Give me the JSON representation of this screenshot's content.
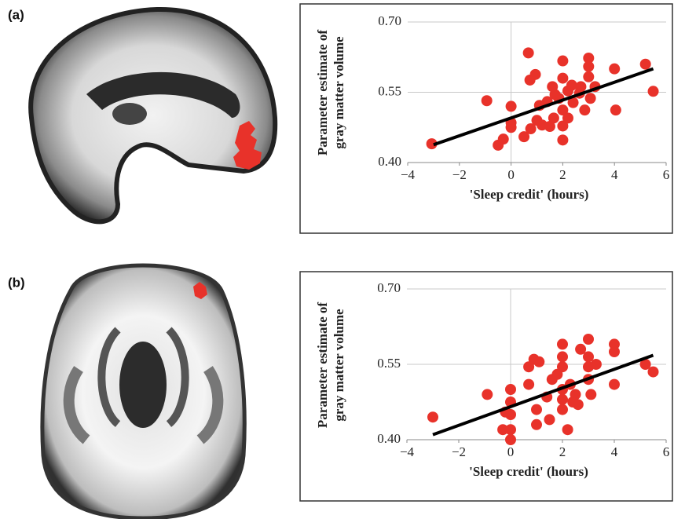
{
  "chart_data": [
    {
      "type": "scatter",
      "panel": "(a)",
      "xlabel": "'Sleep credit' (hours)",
      "ylabel": [
        "Parameter estimate of",
        "gray matter volume"
      ],
      "color": "#e8322a",
      "x": [
        -3.07,
        -0.94,
        0,
        0,
        0,
        -0.5,
        -0.3,
        0.67,
        0.73,
        0.94,
        0.5,
        0.76,
        1.0,
        1.2,
        1.5,
        1.1,
        1.4,
        1.6,
        1.7,
        1.85,
        2.0,
        2.0,
        2.0,
        2.0,
        2.0,
        2.2,
        2.35,
        2.4,
        2.65,
        2.7,
        3.0,
        3.0,
        3.0,
        3.07,
        3.25,
        2.85,
        4.0,
        4.05,
        5.2,
        5.5,
        1.65,
        2.2
      ],
      "values": [
        0.44,
        0.532,
        0.52,
        0.485,
        0.475,
        0.437,
        0.45,
        0.634,
        0.576,
        0.588,
        0.455,
        0.472,
        0.49,
        0.48,
        0.477,
        0.522,
        0.53,
        0.562,
        0.545,
        0.537,
        0.617,
        0.58,
        0.512,
        0.478,
        0.448,
        0.553,
        0.565,
        0.528,
        0.548,
        0.562,
        0.623,
        0.605,
        0.583,
        0.537,
        0.562,
        0.512,
        0.6,
        0.512,
        0.61,
        0.552,
        0.495,
        0.495
      ],
      "trend": {
        "x": [
          -3,
          5.5
        ],
        "values": [
          0.438,
          0.6
        ],
        "color": "#000000"
      },
      "xlim": [
        -4,
        6
      ],
      "xticks": [
        {
          "value": -4,
          "label": "−4"
        },
        {
          "value": -2,
          "label": "−2"
        },
        0,
        2,
        4,
        6
      ],
      "ylim": [
        0.4,
        0.7
      ],
      "yticks": [
        {
          "value": 0.4,
          "label": "0.40"
        },
        0.55,
        {
          "value": 0.7,
          "label": "0.70"
        }
      ],
      "grid": true
    },
    {
      "type": "scatter",
      "panel": "(b)",
      "xlabel": "'Sleep credit' (hours)",
      "ylabel": [
        "Parameter estimate of",
        "gray matter volume"
      ],
      "color": "#e8322a",
      "x": [
        -3,
        -0.9,
        0,
        0,
        0,
        0,
        0,
        -0.3,
        -0.2,
        0.7,
        0.9,
        1.1,
        0.7,
        1,
        1,
        1.5,
        1.6,
        1.8,
        2,
        2,
        2,
        2,
        2,
        2,
        2.2,
        2.3,
        2.5,
        2.6,
        2.7,
        3,
        3,
        3,
        3,
        3.1,
        3.3,
        4,
        4,
        4,
        5.2,
        5.5,
        1.4,
        2.4
      ],
      "values": [
        0.445,
        0.49,
        0.5,
        0.475,
        0.45,
        0.42,
        0.4,
        0.42,
        0.455,
        0.545,
        0.56,
        0.555,
        0.51,
        0.46,
        0.43,
        0.44,
        0.52,
        0.53,
        0.59,
        0.565,
        0.545,
        0.5,
        0.48,
        0.46,
        0.42,
        0.51,
        0.49,
        0.47,
        0.58,
        0.6,
        0.565,
        0.545,
        0.52,
        0.49,
        0.55,
        0.59,
        0.575,
        0.51,
        0.55,
        0.535,
        0.485,
        0.475
      ],
      "trend": {
        "x": [
          -3,
          5.5
        ],
        "values": [
          0.41,
          0.568
        ],
        "color": "#000000"
      },
      "xlim": [
        -4,
        6
      ],
      "xticks": [
        {
          "value": -4,
          "label": "−4"
        },
        {
          "value": -2,
          "label": "−2"
        },
        0,
        2,
        4,
        6
      ],
      "ylim": [
        0.4,
        0.7
      ],
      "yticks": [
        {
          "value": 0.4,
          "label": "0.40"
        },
        0.55,
        {
          "value": 0.7,
          "label": "0.70"
        }
      ],
      "grid": true
    }
  ]
}
